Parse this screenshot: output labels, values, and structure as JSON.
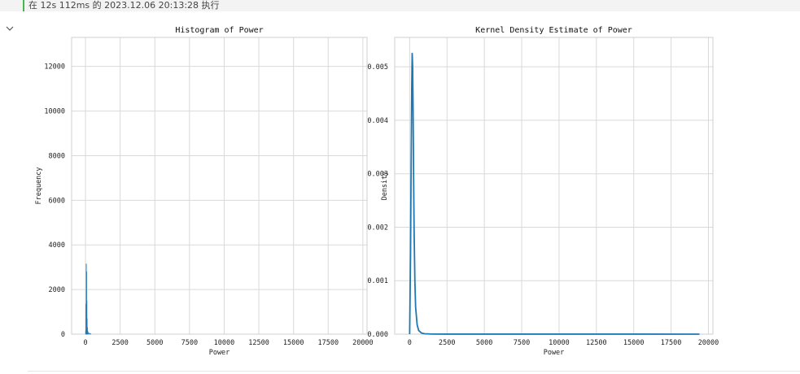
{
  "execution": {
    "text": "在 12s 112ms 的 2023.12.06 20:13:28 执行",
    "accent_color": "#3fb950"
  },
  "toggle": {
    "icon": "chevron-down-icon"
  },
  "colors": {
    "series": "#1f77b4",
    "grid": "#d9d9d9",
    "frame": "#cfcfcf"
  },
  "chart_data": [
    {
      "type": "bar",
      "title": "Histogram of Power",
      "xlabel": "Power",
      "ylabel": "Frequency",
      "xlim": [
        -1000,
        20300
      ],
      "ylim": [
        0,
        13300
      ],
      "xticks": [
        0,
        2500,
        5000,
        7500,
        10000,
        12500,
        15000,
        17500,
        20000
      ],
      "yticks": [
        0,
        2000,
        4000,
        6000,
        8000,
        10000,
        12000
      ],
      "grid": true,
      "bins": [
        {
          "x0": 0,
          "x1": 20,
          "value": 150
        },
        {
          "x0": 20,
          "x1": 40,
          "value": 1350
        },
        {
          "x0": 40,
          "x1": 60,
          "value": 3150
        },
        {
          "x0": 60,
          "x1": 80,
          "value": 2800
        },
        {
          "x0": 80,
          "x1": 100,
          "value": 1500
        },
        {
          "x0": 100,
          "x1": 120,
          "value": 700
        },
        {
          "x0": 120,
          "x1": 140,
          "value": 300
        },
        {
          "x0": 140,
          "x1": 200,
          "value": 120
        },
        {
          "x0": 200,
          "x1": 300,
          "value": 50
        },
        {
          "x0": 300,
          "x1": 400,
          "value": 20
        }
      ]
    },
    {
      "type": "line",
      "title": "Kernel Density Estimate of Power",
      "xlabel": "Power",
      "ylabel": "Density",
      "xlim": [
        -1000,
        20300
      ],
      "ylim": [
        0,
        0.00555
      ],
      "xticks": [
        0,
        2500,
        5000,
        7500,
        10000,
        12500,
        15000,
        17500,
        20000
      ],
      "yticks": [
        0,
        0.001,
        0.002,
        0.003,
        0.004,
        0.005
      ],
      "ytick_labels": [
        "0.000",
        "0.001",
        "0.002",
        "0.003",
        "0.004",
        "0.005"
      ],
      "grid": true,
      "series": [
        {
          "x": [
            0,
            60,
            100,
            140,
            170,
            200,
            230,
            260,
            300,
            350,
            400,
            500,
            600,
            800,
            1000,
            1500,
            2500,
            5000,
            10000,
            15000,
            19400
          ],
          "y": [
            0,
            0.0015,
            0.0032,
            0.0046,
            0.00525,
            0.005,
            0.0042,
            0.0031,
            0.0019,
            0.001,
            0.0005,
            0.00018,
            7e-05,
            2e-05,
            8e-06,
            2e-06,
            1e-06,
            1e-06,
            1e-06,
            1e-06,
            5e-07
          ]
        }
      ]
    }
  ]
}
